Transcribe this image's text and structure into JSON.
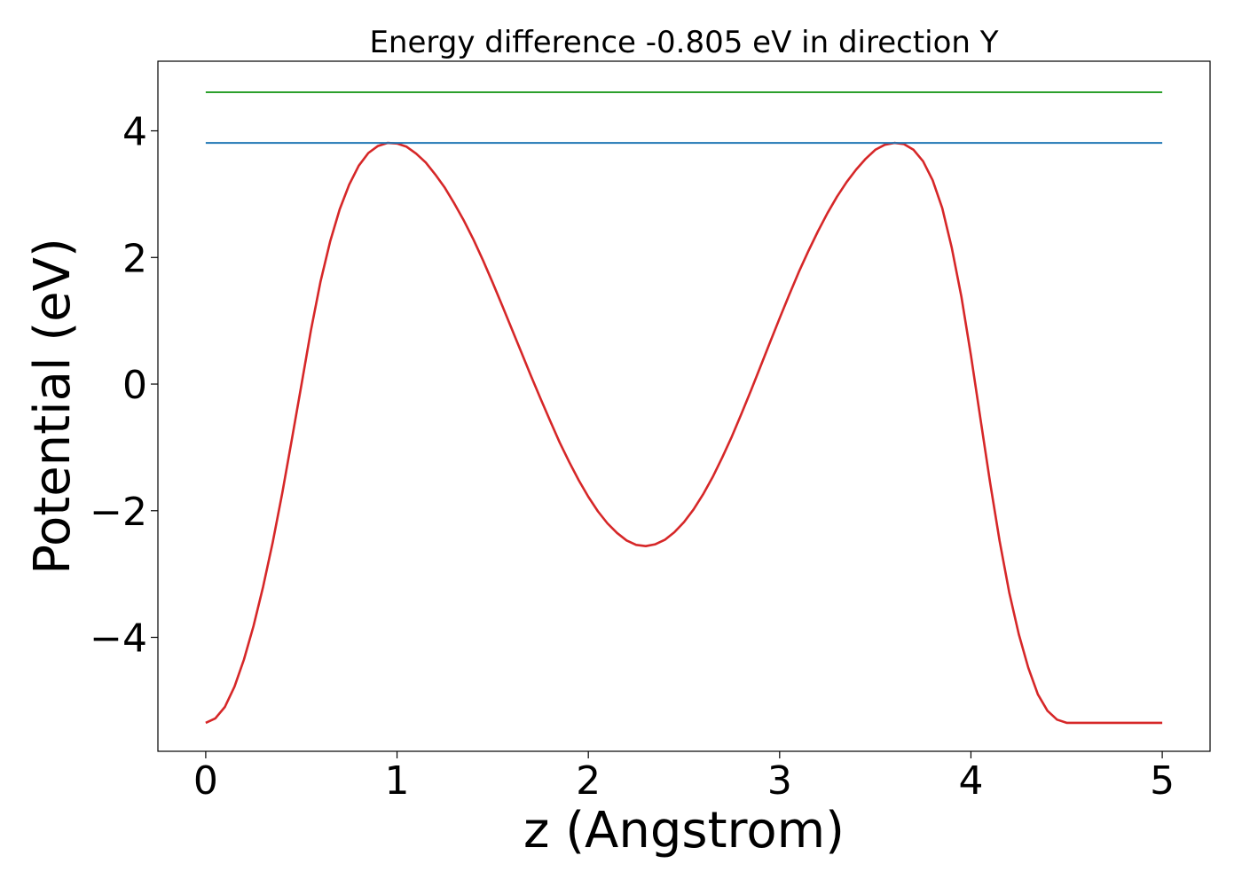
{
  "chart_data": {
    "type": "line",
    "title": "Energy difference -0.805 eV in direction Y",
    "xlabel": "z (Angstrom)",
    "ylabel": "Potential (eV)",
    "xlim": [
      -0.25,
      5.25
    ],
    "ylim": [
      -5.8,
      5.1
    ],
    "grid": false,
    "legend": "none",
    "x_ticks": [
      0,
      1,
      2,
      3,
      4,
      5
    ],
    "x_tick_labels": [
      "0",
      "1",
      "2",
      "3",
      "4",
      "5"
    ],
    "y_ticks": [
      -4,
      -2,
      0,
      2,
      4
    ],
    "y_tick_labels": [
      "−4",
      "−2",
      "0",
      "2",
      "4"
    ],
    "series": [
      {
        "color": "#d62728",
        "x": [
          0,
          0.05,
          0.1,
          0.15,
          0.2,
          0.25,
          0.3,
          0.35,
          0.4,
          0.45,
          0.5,
          0.55,
          0.6,
          0.65,
          0.7,
          0.75,
          0.8,
          0.85,
          0.9,
          0.95,
          1.0,
          1.05,
          1.1,
          1.15,
          1.2,
          1.25,
          1.3,
          1.35,
          1.4,
          1.45,
          1.5,
          1.55,
          1.6,
          1.65,
          1.7,
          1.75,
          1.8,
          1.85,
          1.9,
          1.95,
          2.0,
          2.05,
          2.1,
          2.15,
          2.2,
          2.25,
          2.3,
          2.35,
          2.4,
          2.45,
          2.5,
          2.55,
          2.6,
          2.65,
          2.7,
          2.75,
          2.8,
          2.85,
          2.9,
          2.95,
          3.0,
          3.05,
          3.1,
          3.15,
          3.2,
          3.25,
          3.3,
          3.35,
          3.4,
          3.45,
          3.5,
          3.55,
          3.6,
          3.65,
          3.7,
          3.75,
          3.8,
          3.85,
          3.9,
          3.95,
          4.0,
          4.05,
          4.1,
          4.15,
          4.2,
          4.25,
          4.3,
          4.35,
          4.4,
          4.45,
          4.5,
          4.55,
          4.6,
          4.65,
          4.7,
          4.75,
          4.8,
          4.85,
          4.9,
          4.95,
          5.0
        ],
        "y": [
          -5.35,
          -5.28,
          -5.1,
          -4.78,
          -4.35,
          -3.82,
          -3.2,
          -2.5,
          -1.72,
          -0.88,
          -0.02,
          0.85,
          1.62,
          2.25,
          2.76,
          3.15,
          3.45,
          3.65,
          3.76,
          3.81,
          3.8,
          3.75,
          3.64,
          3.5,
          3.31,
          3.1,
          2.85,
          2.58,
          2.28,
          1.95,
          1.6,
          1.24,
          0.87,
          0.5,
          0.13,
          -0.23,
          -0.58,
          -0.92,
          -1.23,
          -1.52,
          -1.78,
          -2.01,
          -2.2,
          -2.35,
          -2.47,
          -2.54,
          -2.56,
          -2.53,
          -2.46,
          -2.34,
          -2.18,
          -1.98,
          -1.74,
          -1.47,
          -1.16,
          -0.83,
          -0.47,
          -0.1,
          0.28,
          0.66,
          1.04,
          1.41,
          1.77,
          2.1,
          2.41,
          2.7,
          2.96,
          3.19,
          3.39,
          3.56,
          3.7,
          3.78,
          3.81,
          3.79,
          3.7,
          3.52,
          3.22,
          2.78,
          2.15,
          1.38,
          0.45,
          -0.55,
          -1.55,
          -2.48,
          -3.29,
          -3.95,
          -4.48,
          -4.9,
          -5.16,
          -5.3,
          -5.35,
          -5.35,
          -5.35,
          -5.35,
          -5.35,
          -5.35,
          -5.35,
          -5.35,
          -5.35,
          -5.35,
          -5.35
        ]
      },
      {
        "color": "#1f77b4",
        "x": [
          0,
          5
        ],
        "y": [
          3.81,
          3.81
        ]
      },
      {
        "color": "#2ca02c",
        "x": [
          0,
          5
        ],
        "y": [
          4.61,
          4.61
        ]
      }
    ]
  }
}
